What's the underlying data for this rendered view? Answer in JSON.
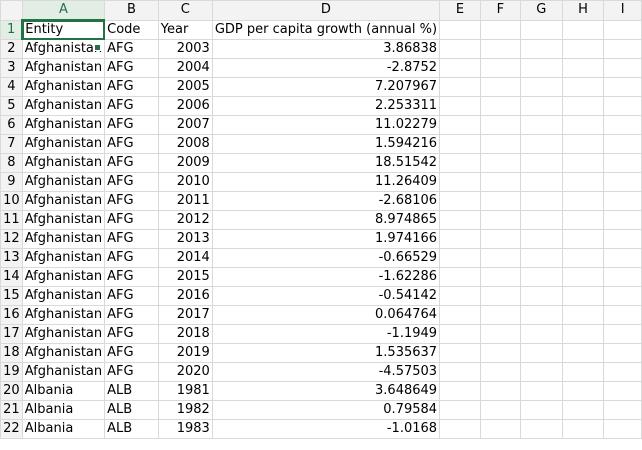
{
  "columns": [
    "A",
    "B",
    "C",
    "D",
    "E",
    "F",
    "G",
    "H",
    "I"
  ],
  "active_cell": "A1",
  "rows": [
    {
      "n": "1",
      "A": "Entity",
      "B": "Code",
      "C": "Year",
      "D": "GDP per capita growth (annual %)"
    },
    {
      "n": "2",
      "A": "Afghanistan",
      "B": "AFG",
      "C": "2003",
      "D": "3.86838"
    },
    {
      "n": "3",
      "A": "Afghanistan",
      "B": "AFG",
      "C": "2004",
      "D": "-2.8752"
    },
    {
      "n": "4",
      "A": "Afghanistan",
      "B": "AFG",
      "C": "2005",
      "D": "7.207967"
    },
    {
      "n": "5",
      "A": "Afghanistan",
      "B": "AFG",
      "C": "2006",
      "D": "2.253311"
    },
    {
      "n": "6",
      "A": "Afghanistan",
      "B": "AFG",
      "C": "2007",
      "D": "11.02279"
    },
    {
      "n": "7",
      "A": "Afghanistan",
      "B": "AFG",
      "C": "2008",
      "D": "1.594216"
    },
    {
      "n": "8",
      "A": "Afghanistan",
      "B": "AFG",
      "C": "2009",
      "D": "18.51542"
    },
    {
      "n": "9",
      "A": "Afghanistan",
      "B": "AFG",
      "C": "2010",
      "D": "11.26409"
    },
    {
      "n": "10",
      "A": "Afghanistan",
      "B": "AFG",
      "C": "2011",
      "D": "-2.68106"
    },
    {
      "n": "11",
      "A": "Afghanistan",
      "B": "AFG",
      "C": "2012",
      "D": "8.974865"
    },
    {
      "n": "12",
      "A": "Afghanistan",
      "B": "AFG",
      "C": "2013",
      "D": "1.974166"
    },
    {
      "n": "13",
      "A": "Afghanistan",
      "B": "AFG",
      "C": "2014",
      "D": "-0.66529"
    },
    {
      "n": "14",
      "A": "Afghanistan",
      "B": "AFG",
      "C": "2015",
      "D": "-1.62286"
    },
    {
      "n": "15",
      "A": "Afghanistan",
      "B": "AFG",
      "C": "2016",
      "D": "-0.54142"
    },
    {
      "n": "16",
      "A": "Afghanistan",
      "B": "AFG",
      "C": "2017",
      "D": "0.064764"
    },
    {
      "n": "17",
      "A": "Afghanistan",
      "B": "AFG",
      "C": "2018",
      "D": "-1.1949"
    },
    {
      "n": "18",
      "A": "Afghanistan",
      "B": "AFG",
      "C": "2019",
      "D": "1.535637"
    },
    {
      "n": "19",
      "A": "Afghanistan",
      "B": "AFG",
      "C": "2020",
      "D": "-4.57503"
    },
    {
      "n": "20",
      "A": "Albania",
      "B": "ALB",
      "C": "1981",
      "D": "3.648649"
    },
    {
      "n": "21",
      "A": "Albania",
      "B": "ALB",
      "C": "1982",
      "D": "0.79584"
    },
    {
      "n": "22",
      "A": "Albania",
      "B": "ALB",
      "C": "1983",
      "D": "-1.0168"
    }
  ]
}
